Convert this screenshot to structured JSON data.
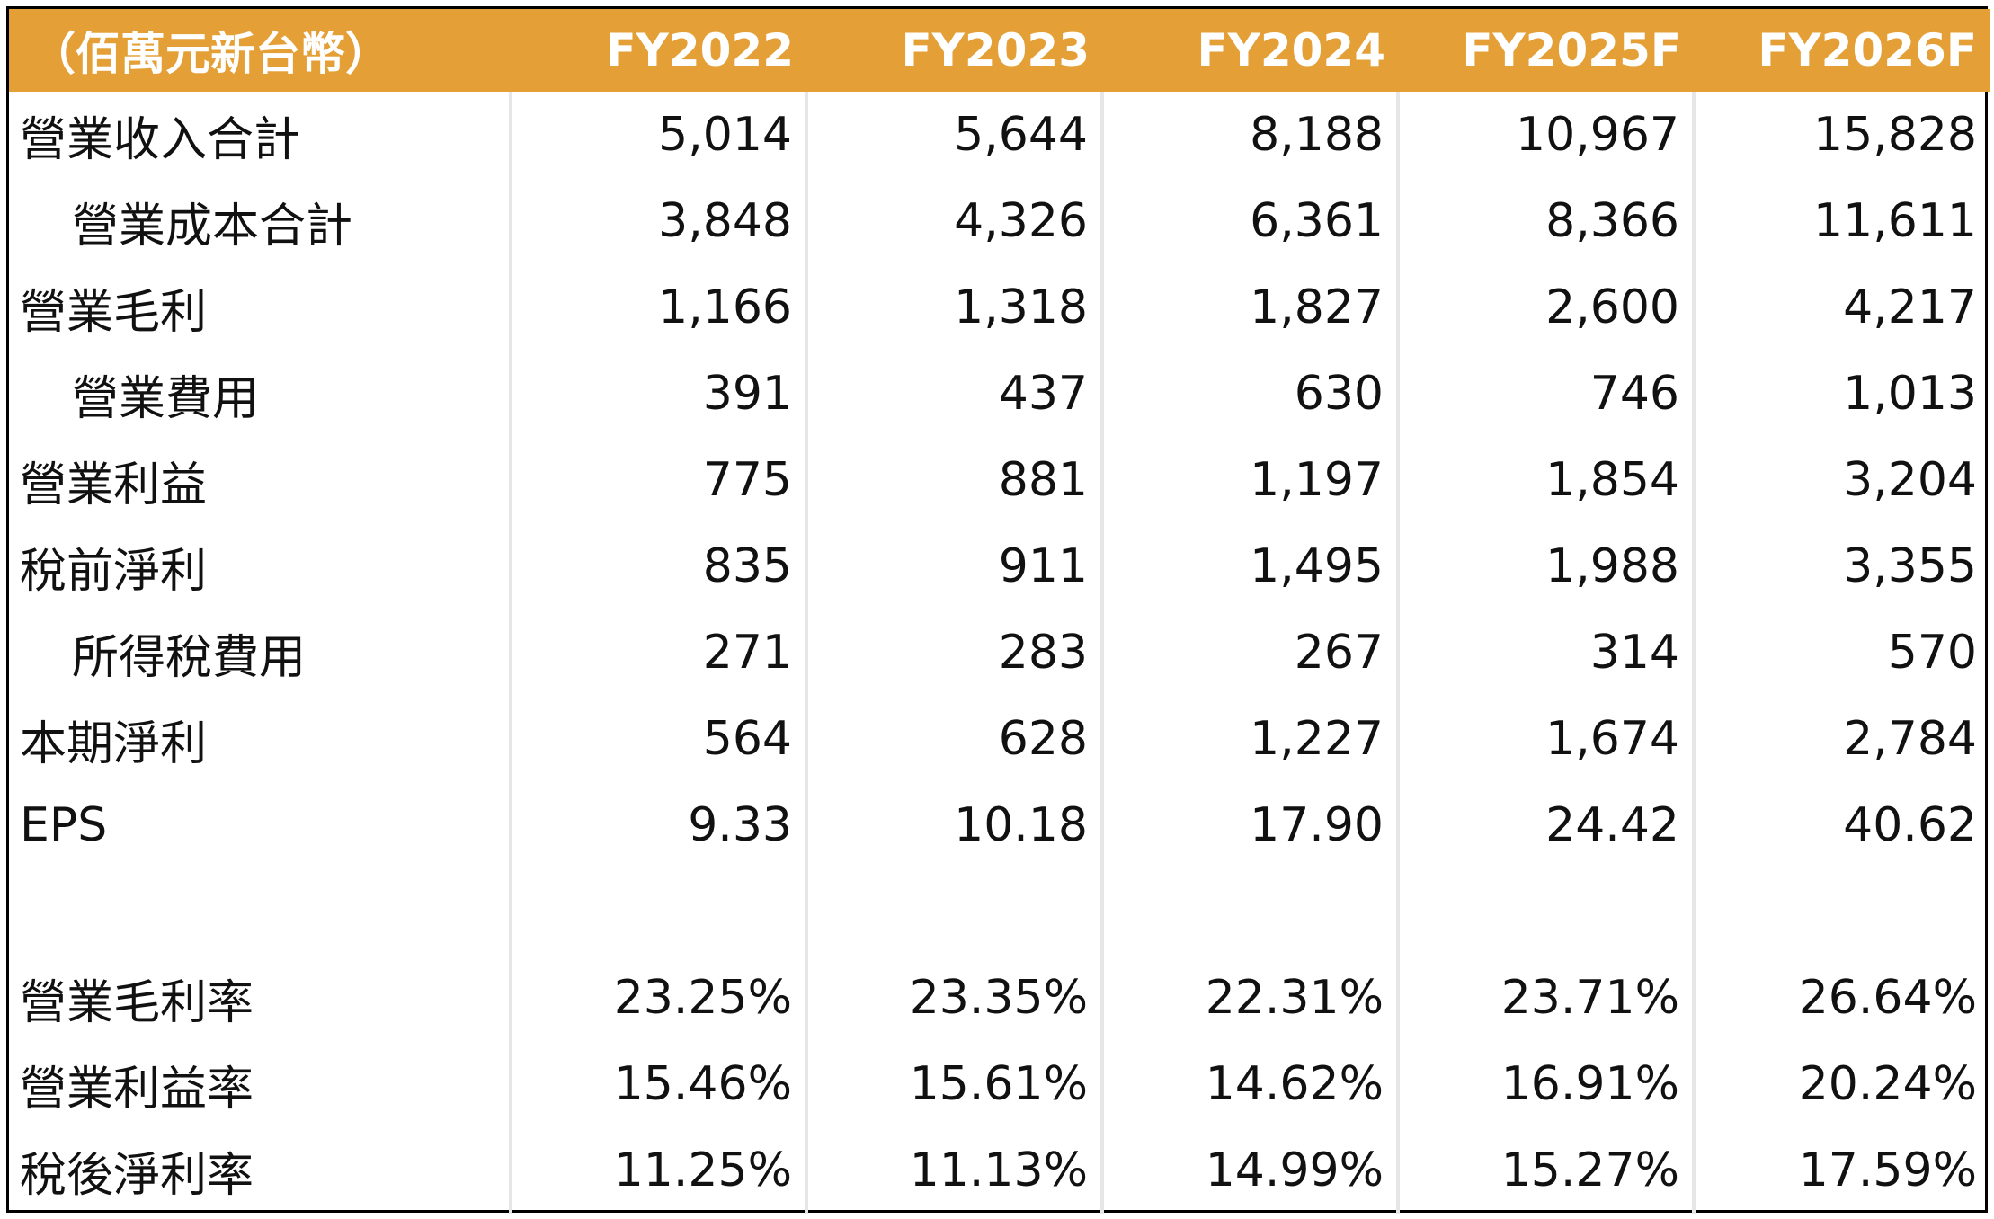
{
  "header": [
    "（佰萬元新台幣）",
    "FY2022",
    "FY2023",
    "FY2024",
    "FY2025F",
    "FY2026F"
  ],
  "rows": [
    {
      "label": "營業收入合計",
      "indent": false,
      "values": [
        "5,014",
        "5,644",
        "8,188",
        "10,967",
        "15,828"
      ]
    },
    {
      "label": "營業成本合計",
      "indent": true,
      "values": [
        "3,848",
        "4,326",
        "6,361",
        "8,366",
        "11,611"
      ]
    },
    {
      "label": "營業毛利",
      "indent": false,
      "values": [
        "1,166",
        "1,318",
        "1,827",
        "2,600",
        "4,217"
      ]
    },
    {
      "label": "營業費用",
      "indent": true,
      "values": [
        "391",
        "437",
        "630",
        "746",
        "1,013"
      ]
    },
    {
      "label": "營業利益",
      "indent": false,
      "values": [
        "775",
        "881",
        "1,197",
        "1,854",
        "3,204"
      ]
    },
    {
      "label": "稅前淨利",
      "indent": false,
      "values": [
        "835",
        "911",
        "1,495",
        "1,988",
        "3,355"
      ]
    },
    {
      "label": "所得稅費用",
      "indent": true,
      "values": [
        "271",
        "283",
        "267",
        "314",
        "570"
      ]
    },
    {
      "label": "本期淨利",
      "indent": false,
      "values": [
        "564",
        "628",
        "1,227",
        "1,674",
        "2,784"
      ]
    },
    {
      "label": "EPS",
      "indent": false,
      "values": [
        "9.33",
        "10.18",
        "17.90",
        "24.42",
        "40.62"
      ]
    },
    {
      "label": "",
      "indent": false,
      "spacer": true,
      "values": [
        "",
        "",
        "",
        "",
        ""
      ]
    },
    {
      "label": "營業毛利率",
      "indent": false,
      "values": [
        "23.25%",
        "23.35%",
        "22.31%",
        "23.71%",
        "26.64%"
      ]
    },
    {
      "label": "營業利益率",
      "indent": false,
      "values": [
        "15.46%",
        "15.61%",
        "14.62%",
        "16.91%",
        "20.24%"
      ]
    },
    {
      "label": "稅後淨利率",
      "indent": false,
      "values": [
        "11.25%",
        "11.13%",
        "14.99%",
        "15.27%",
        "17.59%"
      ]
    }
  ],
  "colors": {
    "header_bg": "#e4a036",
    "header_text": "#ffffff",
    "column_divider": "#e6e6e6"
  }
}
